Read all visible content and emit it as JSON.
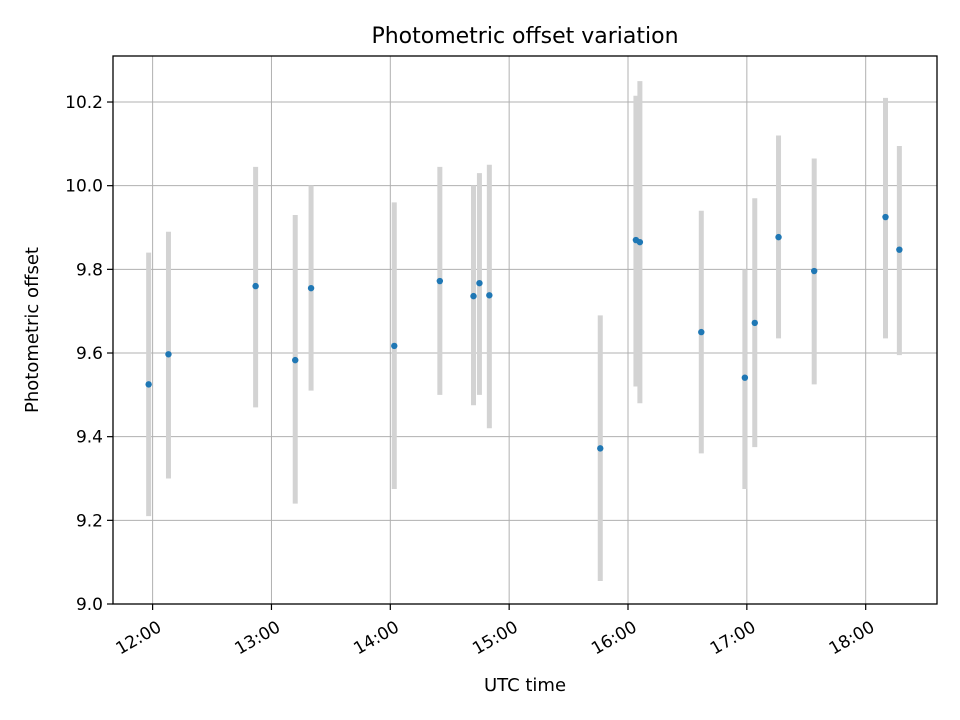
{
  "chart_data": {
    "type": "scatter",
    "title": "Photometric offset variation",
    "xlabel": "UTC time",
    "ylabel": "Photometric offset",
    "x_ticks": [
      "12:00",
      "13:00",
      "14:00",
      "15:00",
      "16:00",
      "17:00",
      "18:00"
    ],
    "y_ticks": [
      "9.0",
      "9.2",
      "9.4",
      "9.6",
      "9.8",
      "10.0",
      "10.2"
    ],
    "xlim": [
      "11:40",
      "18:36"
    ],
    "ylim": [
      9.0,
      10.31
    ],
    "grid": true,
    "legend": "none",
    "colors": {
      "point": "#1f77b4",
      "errorbar": "#d3d3d3",
      "grid": "#b0b0b0",
      "axes": "#000000"
    },
    "points": [
      {
        "x": "11:58",
        "y": 9.525,
        "ylow": 9.21,
        "yhigh": 9.84
      },
      {
        "x": "12:08",
        "y": 9.597,
        "ylow": 9.3,
        "yhigh": 9.89
      },
      {
        "x": "12:52",
        "y": 9.76,
        "ylow": 9.47,
        "yhigh": 10.045
      },
      {
        "x": "13:12",
        "y": 9.583,
        "ylow": 9.24,
        "yhigh": 9.93
      },
      {
        "x": "13:20",
        "y": 9.755,
        "ylow": 9.51,
        "yhigh": 10.0
      },
      {
        "x": "14:02",
        "y": 9.617,
        "ylow": 9.275,
        "yhigh": 9.96
      },
      {
        "x": "14:25",
        "y": 9.772,
        "ylow": 9.5,
        "yhigh": 10.045
      },
      {
        "x": "14:42",
        "y": 9.736,
        "ylow": 9.475,
        "yhigh": 10.0
      },
      {
        "x": "14:45",
        "y": 9.767,
        "ylow": 9.5,
        "yhigh": 10.03
      },
      {
        "x": "14:50",
        "y": 9.738,
        "ylow": 9.42,
        "yhigh": 10.05
      },
      {
        "x": "15:46",
        "y": 9.372,
        "ylow": 9.055,
        "yhigh": 9.69
      },
      {
        "x": "16:04",
        "y": 9.87,
        "ylow": 9.52,
        "yhigh": 10.215
      },
      {
        "x": "16:06",
        "y": 9.865,
        "ylow": 9.48,
        "yhigh": 10.25
      },
      {
        "x": "16:37",
        "y": 9.65,
        "ylow": 9.36,
        "yhigh": 9.94
      },
      {
        "x": "16:59",
        "y": 9.541,
        "ylow": 9.275,
        "yhigh": 9.8
      },
      {
        "x": "17:04",
        "y": 9.672,
        "ylow": 9.375,
        "yhigh": 9.97
      },
      {
        "x": "17:16",
        "y": 9.877,
        "ylow": 9.635,
        "yhigh": 10.12
      },
      {
        "x": "17:34",
        "y": 9.796,
        "ylow": 9.525,
        "yhigh": 10.065
      },
      {
        "x": "18:10",
        "y": 9.925,
        "ylow": 9.635,
        "yhigh": 10.21
      },
      {
        "x": "18:17",
        "y": 9.847,
        "ylow": 9.595,
        "yhigh": 10.095
      }
    ]
  }
}
